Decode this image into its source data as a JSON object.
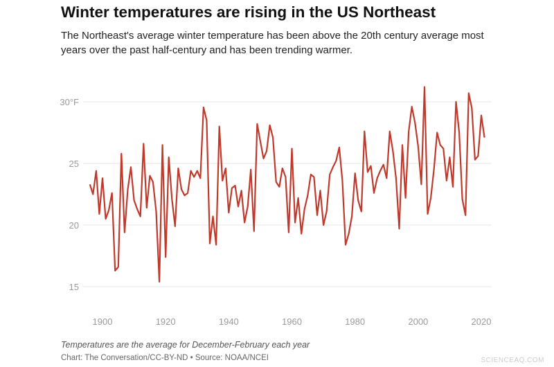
{
  "title": "Winter temperatures are rising in the US Northeast",
  "subtitle": "The Northeast's average winter temperature has been above the 20th century average most years over the past half-century and has been trending warmer.",
  "note": "Temperatures are the average for December-February each year",
  "credit": "Chart: The Conversation/CC-BY-ND • Source: NOAA/NCEI",
  "watermark": "SCIENCEAQ.COM",
  "chart_data": {
    "type": "line",
    "title": "Winter temperatures are rising in the US Northeast",
    "xlabel": "",
    "ylabel": "",
    "xlim": [
      1896,
      2021
    ],
    "ylim": [
      15,
      31.5
    ],
    "grid": true,
    "line_color": "#c0392b",
    "x_ticks": [
      {
        "value": 1900,
        "label": "1900"
      },
      {
        "value": 1920,
        "label": "1920"
      },
      {
        "value": 1940,
        "label": "1940"
      },
      {
        "value": 1960,
        "label": "1960"
      },
      {
        "value": 1980,
        "label": "1980"
      },
      {
        "value": 2000,
        "label": "2000"
      },
      {
        "value": 2020,
        "label": "2020"
      }
    ],
    "y_ticks": [
      {
        "value": 15,
        "label": "15"
      },
      {
        "value": 20,
        "label": "20"
      },
      {
        "value": 25,
        "label": "25"
      },
      {
        "value": 30,
        "label": "30°F"
      }
    ],
    "x_start": 1896,
    "values": [
      23.3,
      22.5,
      24.4,
      20.9,
      23.8,
      20.5,
      21.2,
      22.6,
      16.3,
      16.6,
      25.8,
      19.4,
      22.9,
      24.7,
      22.0,
      21.3,
      20.7,
      26.6,
      21.4,
      24.0,
      23.5,
      21.1,
      15.4,
      26.5,
      17.4,
      25.5,
      22.1,
      19.9,
      24.6,
      22.9,
      22.4,
      22.6,
      24.4,
      23.9,
      24.4,
      23.8,
      29.55,
      28.5,
      18.5,
      20.7,
      18.4,
      28.0,
      23.6,
      24.6,
      21.0,
      23.0,
      23.2,
      21.5,
      22.8,
      20.2,
      21.5,
      24.5,
      19.5,
      28.2,
      26.8,
      25.4,
      26.0,
      28.1,
      27.1,
      23.5,
      23.1,
      24.6,
      23.9,
      19.4,
      26.2,
      20.2,
      22.2,
      19.3,
      21.3,
      22.4,
      24.1,
      23.9,
      20.8,
      22.8,
      20.0,
      21.1,
      24.1,
      24.7,
      25.2,
      26.3,
      23.6,
      18.4,
      19.3,
      20.7,
      24.2,
      22.0,
      21.1,
      27.6,
      24.3,
      24.8,
      22.6,
      23.8,
      24.4,
      24.9,
      23.8,
      27.6,
      26.0,
      23.8,
      19.7,
      26.5,
      22.2,
      27.6,
      29.6,
      28.3,
      26.4,
      23.3,
      31.2,
      20.9,
      22.2,
      24.5,
      27.5,
      26.5,
      26.2,
      23.6,
      25.5,
      23.1,
      30.0,
      27.5,
      22.1,
      20.8,
      30.7,
      29.5,
      25.3,
      25.6,
      28.9,
      27.1
    ]
  }
}
